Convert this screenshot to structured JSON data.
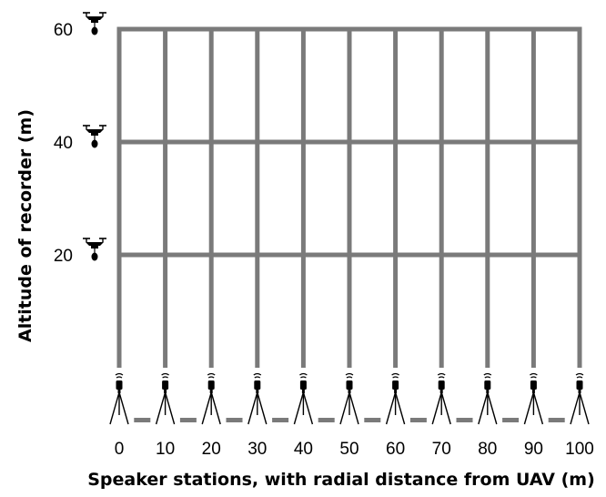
{
  "chart_data": {
    "type": "diagram",
    "xlabel": "Speaker stations, with radial distance from UAV (m)",
    "ylabel": "Altitude of recorder (m)",
    "x_ticks": [
      "0",
      "10",
      "20",
      "30",
      "40",
      "50",
      "60",
      "70",
      "80",
      "90",
      "100"
    ],
    "y_ticks": [
      "20",
      "40",
      "60"
    ],
    "stations_x": [
      0,
      10,
      20,
      30,
      40,
      50,
      60,
      70,
      80,
      90,
      100
    ],
    "altitudes": [
      20,
      40,
      60
    ],
    "xlim": [
      0,
      100
    ],
    "ylim": [
      0,
      60
    ]
  },
  "icons": {
    "recorder": "drone-icon",
    "station": "tripod-speaker-icon"
  },
  "colors": {
    "grid": "#7a7a7a",
    "icon": "#000000"
  }
}
